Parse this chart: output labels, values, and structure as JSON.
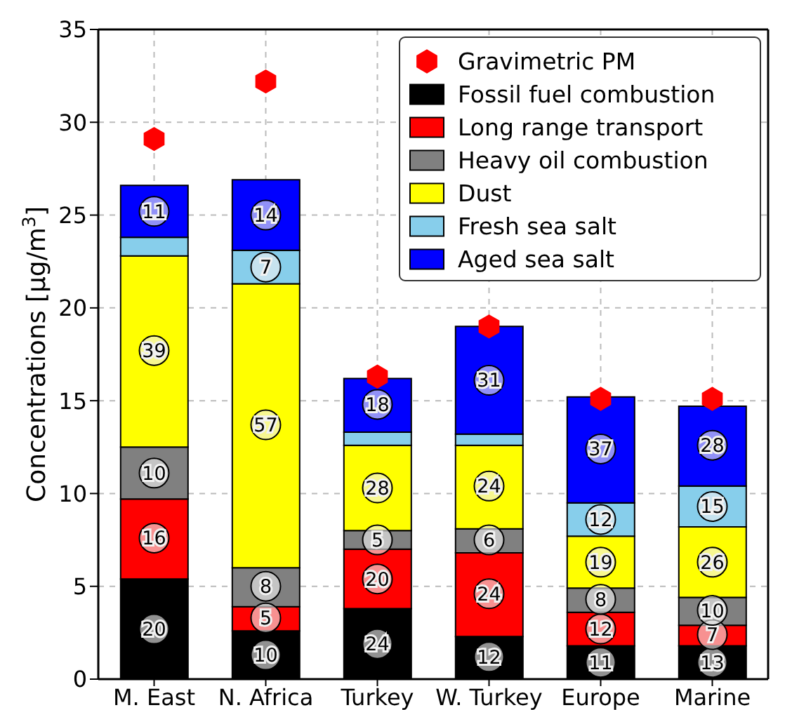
{
  "chart_data": {
    "type": "bar",
    "stacked": true,
    "ylabel": "Concentrations [μg/m$^{3}$]",
    "categories": [
      "M. East",
      "N. Africa",
      "Turkey",
      "W. Turkey",
      "Europe",
      "Marine"
    ],
    "ylim": [
      0,
      35
    ],
    "yticks": [
      0,
      5,
      10,
      15,
      20,
      25,
      30,
      35
    ],
    "grid": true,
    "legend": "top right",
    "series": [
      {
        "name": "Gravimetric PM",
        "type": "scatter",
        "color": "#ff0000",
        "x": [
          "M. East",
          "N. Africa",
          "Turkey",
          "W. Turkey",
          "Europe",
          "Marine"
        ],
        "values": [
          29.1,
          32.2,
          16.3,
          19.0,
          15.1,
          15.1
        ]
      },
      {
        "name": "Fossil fuel combustion",
        "color": "#000000",
        "values": [
          5.4,
          2.6,
          3.8,
          2.3,
          1.8,
          1.8
        ]
      },
      {
        "name": "Long range transport",
        "color": "#ff0000",
        "values": [
          4.3,
          1.3,
          3.2,
          4.5,
          1.8,
          1.1
        ]
      },
      {
        "name": "Heavy oil combustion",
        "color": "#808080",
        "values": [
          2.8,
          2.1,
          1.0,
          1.3,
          1.3,
          1.5
        ]
      },
      {
        "name": "Dust",
        "color": "#ffff00",
        "values": [
          10.3,
          15.3,
          4.6,
          4.5,
          2.8,
          3.8
        ]
      },
      {
        "name": "Fresh sea salt",
        "color": "#87ceeb",
        "values": [
          1.0,
          1.8,
          0.7,
          0.6,
          1.8,
          2.2
        ]
      },
      {
        "name": "Aged sea salt",
        "color": "#0000ff",
        "values": [
          2.8,
          3.8,
          2.9,
          5.8,
          5.7,
          4.3
        ]
      }
    ],
    "annotations": [
      {
        "text": "20",
        "x": "M. East",
        "y": 2.7
      },
      {
        "text": "16",
        "x": "M. East",
        "y": 7.6
      },
      {
        "text": "10",
        "x": "M. East",
        "y": 11.1
      },
      {
        "text": "39",
        "x": "M. East",
        "y": 17.7
      },
      {
        "text": "11",
        "x": "M. East",
        "y": 25.2
      },
      {
        "text": "10",
        "x": "N. Africa",
        "y": 1.3
      },
      {
        "text": "5",
        "x": "N. Africa",
        "y": 3.3
      },
      {
        "text": "8",
        "x": "N. Africa",
        "y": 5.0
      },
      {
        "text": "57",
        "x": "N. Africa",
        "y": 13.7
      },
      {
        "text": "7",
        "x": "N. Africa",
        "y": 22.2
      },
      {
        "text": "14",
        "x": "N. Africa",
        "y": 25.0
      },
      {
        "text": "24",
        "x": "Turkey",
        "y": 1.9
      },
      {
        "text": "20",
        "x": "Turkey",
        "y": 5.4
      },
      {
        "text": "5",
        "x": "Turkey",
        "y": 7.5
      },
      {
        "text": "28",
        "x": "Turkey",
        "y": 10.3
      },
      {
        "text": "18",
        "x": "Turkey",
        "y": 14.8
      },
      {
        "text": "12",
        "x": "W. Turkey",
        "y": 1.2
      },
      {
        "text": "24",
        "x": "W. Turkey",
        "y": 4.6
      },
      {
        "text": "6",
        "x": "W. Turkey",
        "y": 7.5
      },
      {
        "text": "24",
        "x": "W. Turkey",
        "y": 10.4
      },
      {
        "text": "31",
        "x": "W. Turkey",
        "y": 16.1
      },
      {
        "text": "11",
        "x": "Europe",
        "y": 0.9
      },
      {
        "text": "12",
        "x": "Europe",
        "y": 2.7
      },
      {
        "text": "8",
        "x": "Europe",
        "y": 4.3
      },
      {
        "text": "19",
        "x": "Europe",
        "y": 6.3
      },
      {
        "text": "12",
        "x": "Europe",
        "y": 8.6
      },
      {
        "text": "37",
        "x": "Europe",
        "y": 12.4
      },
      {
        "text": "13",
        "x": "Marine",
        "y": 0.9
      },
      {
        "text": "7",
        "x": "Marine",
        "y": 2.4
      },
      {
        "text": "10",
        "x": "Marine",
        "y": 3.7
      },
      {
        "text": "26",
        "x": "Marine",
        "y": 6.3
      },
      {
        "text": "15",
        "x": "Marine",
        "y": 9.3
      },
      {
        "text": "28",
        "x": "Marine",
        "y": 12.6
      }
    ]
  }
}
